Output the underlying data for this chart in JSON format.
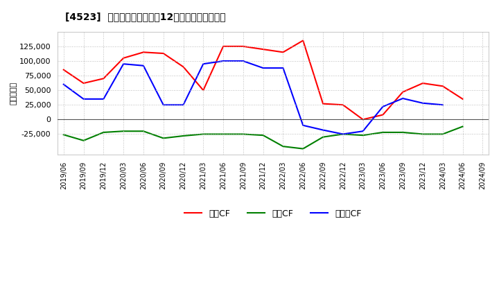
{
  "title": "[4523]  キャッシュフローの12か月移動合計の推移",
  "ylabel": "（百万円）",
  "background_color": "#ffffff",
  "plot_bg_color": "#ffffff",
  "grid_color": "#aaaaaa",
  "x_labels": [
    "2019/06",
    "2019/09",
    "2019/12",
    "2020/03",
    "2020/06",
    "2020/09",
    "2020/12",
    "2021/03",
    "2021/06",
    "2021/09",
    "2021/12",
    "2022/03",
    "2022/06",
    "2022/09",
    "2022/12",
    "2023/03",
    "2023/06",
    "2023/09",
    "2023/12",
    "2024/03",
    "2024/06",
    "2024/09"
  ],
  "operating_cf": [
    85000,
    62000,
    70000,
    105000,
    115000,
    113000,
    90000,
    50000,
    125000,
    125000,
    120000,
    115000,
    135000,
    27000,
    25000,
    0,
    8000,
    47000,
    62000,
    57000,
    35000,
    null
  ],
  "investing_cf": [
    -26000,
    -36000,
    -22000,
    -20000,
    -20000,
    -32000,
    -28000,
    -25000,
    -25000,
    -25000,
    -27000,
    -46000,
    -50000,
    -30000,
    -25000,
    -27000,
    -22000,
    -22000,
    -25000,
    -25000,
    -12000,
    null
  ],
  "free_cf": [
    60000,
    35000,
    35000,
    95000,
    92000,
    25000,
    25000,
    95000,
    100000,
    100000,
    88000,
    88000,
    -10000,
    -18000,
    -25000,
    -20000,
    22000,
    36000,
    28000,
    25000,
    null,
    null
  ],
  "operating_color": "#ff0000",
  "investing_color": "#008000",
  "free_color": "#0000ff",
  "legend_labels": [
    "営業CF",
    "投資CF",
    "フリーCF"
  ],
  "ylim": [
    -60000,
    150000
  ],
  "yticks": [
    -25000,
    0,
    25000,
    50000,
    75000,
    100000,
    125000
  ]
}
